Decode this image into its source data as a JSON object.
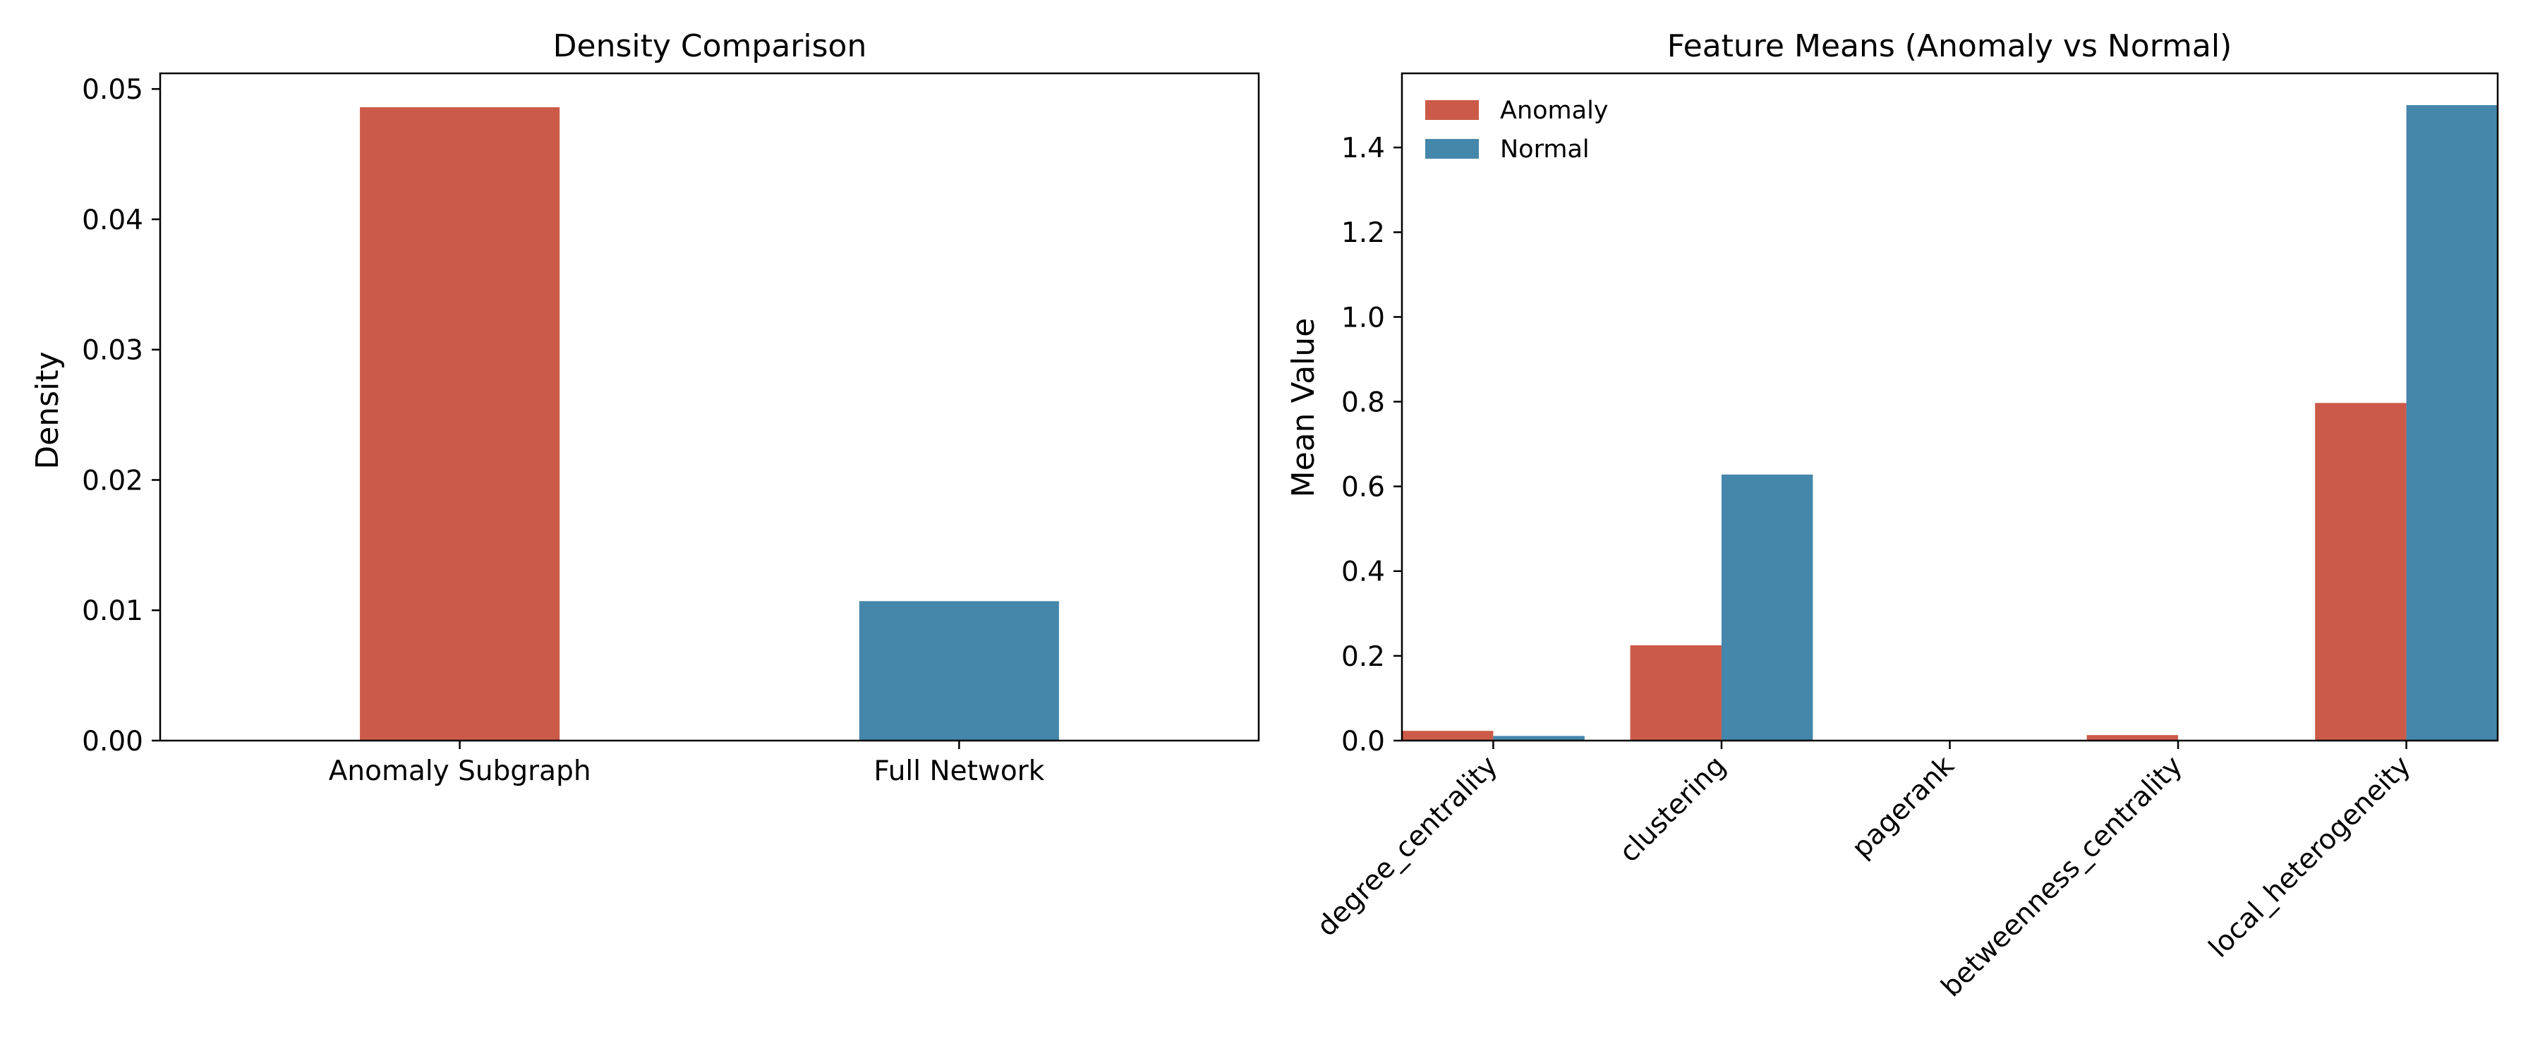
{
  "chart_data": [
    {
      "type": "bar",
      "title": "Density Comparison",
      "xlabel": "",
      "ylabel": "Density",
      "categories": [
        "Anomaly Subgraph",
        "Full Network"
      ],
      "values": [
        0.0486,
        0.0107
      ],
      "colors": [
        "#cb5b48",
        "#4586ab"
      ],
      "ylim": [
        0,
        0.0512
      ],
      "yticks": [
        0.0,
        0.01,
        0.02,
        0.03,
        0.04,
        0.05
      ],
      "ytick_labels": [
        "0.00",
        "0.01",
        "0.02",
        "0.03",
        "0.04",
        "0.05"
      ],
      "grid": false
    },
    {
      "type": "bar",
      "title": "Feature Means (Anomaly vs Normal)",
      "xlabel": "",
      "ylabel": "Mean Value",
      "categories": [
        "degree_centrality",
        "clustering",
        "pagerank",
        "betweenness_centrality",
        "local_heterogeneity"
      ],
      "series": [
        {
          "name": "Anomaly",
          "color": "#cb5b48",
          "values": [
            0.023,
            0.225,
            0.0,
            0.013,
            0.797
          ]
        },
        {
          "name": "Normal",
          "color": "#4586ab",
          "values": [
            0.011,
            0.628,
            0.0,
            0.001,
            1.5
          ]
        }
      ],
      "ylim": [
        0,
        1.575
      ],
      "yticks": [
        0.0,
        0.2,
        0.4,
        0.6,
        0.8,
        1.0,
        1.2,
        1.4
      ],
      "ytick_labels": [
        "0.0",
        "0.2",
        "0.4",
        "0.6",
        "0.8",
        "1.0",
        "1.2",
        "1.4"
      ],
      "legend": "top-left",
      "grid": false
    }
  ]
}
